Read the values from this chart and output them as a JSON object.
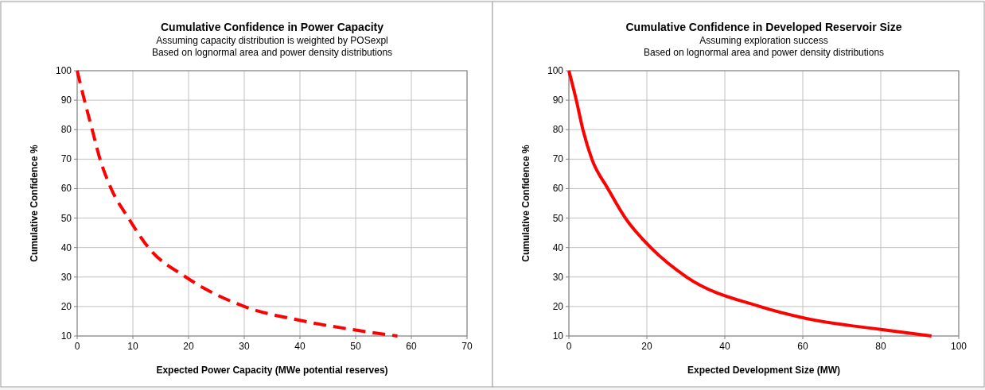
{
  "chart_data": [
    {
      "type": "line",
      "title": "Cumulative Confidence in Power Capacity",
      "subtitle": "Assuming capacity distribution is weighted by POSexpl\nBased on lognormal area and power density distributions",
      "xlabel": "Expected Power Capacity (MWe potential reserves)",
      "ylabel": "Cumulative Confidence %",
      "x": [
        0,
        1.3,
        2.7,
        4.1,
        6.1,
        9.2,
        12.8,
        19.5,
        30,
        40,
        50,
        57.5
      ],
      "series": [
        {
          "color": "#ff0000",
          "values": [
            100,
            90,
            80,
            70,
            60,
            50,
            40,
            30,
            20,
            15.3,
            12,
            10
          ]
        }
      ],
      "xlim": [
        0,
        70
      ],
      "xticks": [
        0,
        10,
        20,
        30,
        40,
        50,
        60,
        70
      ],
      "ylim": [
        10,
        100
      ],
      "yticks": [
        10,
        20,
        30,
        40,
        50,
        60,
        70,
        80,
        90,
        100
      ],
      "grid": true,
      "line_style": "dashed"
    },
    {
      "type": "line",
      "title": "Cumulative Confidence in Developed Reservoir Size",
      "subtitle": "Assuming exploration success\nBased on lognormal area and power density distributions",
      "xlabel": "Expected Development Size (MW)",
      "ylabel": "Cumulative Confidence %",
      "x": [
        0,
        1.9,
        3.6,
        5.9,
        10,
        14.5,
        21,
        30.2,
        49,
        60,
        80,
        93
      ],
      "series": [
        {
          "color": "#ff0000",
          "values": [
            100,
            90,
            80,
            70,
            60,
            50,
            40,
            30,
            20,
            16.2,
            12.2,
            10
          ]
        }
      ],
      "xlim": [
        0,
        100
      ],
      "xticks": [
        0,
        20,
        40,
        60,
        80,
        100
      ],
      "ylim": [
        10,
        100
      ],
      "yticks": [
        10,
        20,
        30,
        40,
        50,
        60,
        70,
        80,
        90,
        100
      ],
      "grid": true,
      "line_style": "solid"
    }
  ]
}
